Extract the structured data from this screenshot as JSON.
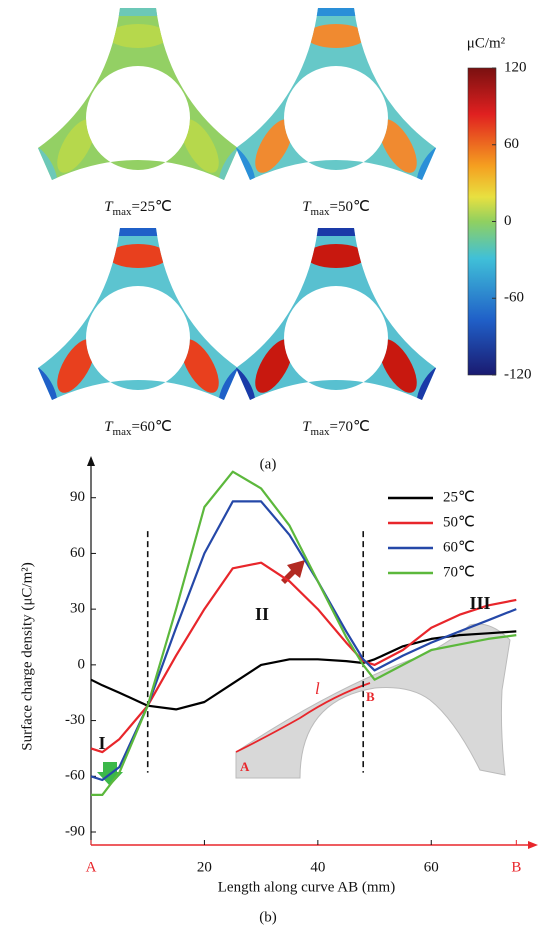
{
  "figure_a": {
    "panels": [
      {
        "symbol": "T",
        "subscript": "max",
        "text": "=25℃"
      },
      {
        "symbol": "T",
        "subscript": "max",
        "text": "=50℃"
      },
      {
        "symbol": "T",
        "subscript": "max",
        "text": "=60℃"
      },
      {
        "symbol": "T",
        "subscript": "max",
        "text": "=70℃"
      }
    ],
    "colorbar": {
      "label": "μC/m²",
      "lim": [
        -120,
        120
      ],
      "ticks": [
        120,
        60,
        0,
        -60,
        -120
      ]
    },
    "caption": "(a)"
  },
  "chart_data": {
    "type": "line",
    "xlabel": "Length along curve AB (mm)",
    "ylabel": "Surface charge density (μC/m²)",
    "x": [
      0,
      2,
      5,
      10,
      15,
      20,
      25,
      30,
      35,
      40,
      45,
      48,
      50,
      55,
      60,
      65,
      70,
      75
    ],
    "series": [
      {
        "name": "25℃",
        "color": "#000000",
        "values": [
          -8,
          -11,
          -15,
          -22,
          -24,
          -20,
          -10,
          0,
          3,
          3,
          2,
          1,
          3,
          10,
          14,
          16,
          17,
          18
        ]
      },
      {
        "name": "50℃",
        "color": "#e8262b",
        "values": [
          -45,
          -47,
          -40,
          -22,
          5,
          30,
          52,
          55,
          45,
          30,
          12,
          2,
          0,
          8,
          20,
          27,
          32,
          35
        ]
      },
      {
        "name": "60℃",
        "color": "#2548a8",
        "values": [
          -60,
          -62,
          -55,
          -22,
          20,
          60,
          88,
          88,
          70,
          45,
          18,
          3,
          -3,
          5,
          12,
          18,
          24,
          30
        ]
      },
      {
        "name": "70℃",
        "color": "#5cb83c",
        "values": [
          -70,
          -70,
          -58,
          -22,
          30,
          85,
          104,
          95,
          75,
          45,
          15,
          0,
          -8,
          0,
          8,
          11,
          14,
          16
        ]
      }
    ],
    "xlim": [
      0,
      76
    ],
    "ylim": [
      -97,
      106
    ],
    "xticks": [
      {
        "value": 0,
        "label": "A"
      },
      20,
      40,
      60,
      {
        "value": 75,
        "label": "B"
      }
    ],
    "yticks": [
      -90,
      -60,
      -30,
      0,
      30,
      60,
      90
    ],
    "dividers": [
      10,
      48
    ],
    "legend": "upper right",
    "annotations": [
      "I",
      "II",
      "III"
    ],
    "inset": {
      "start": "A",
      "end": "B",
      "curve": "l"
    },
    "caption": "(b)"
  }
}
